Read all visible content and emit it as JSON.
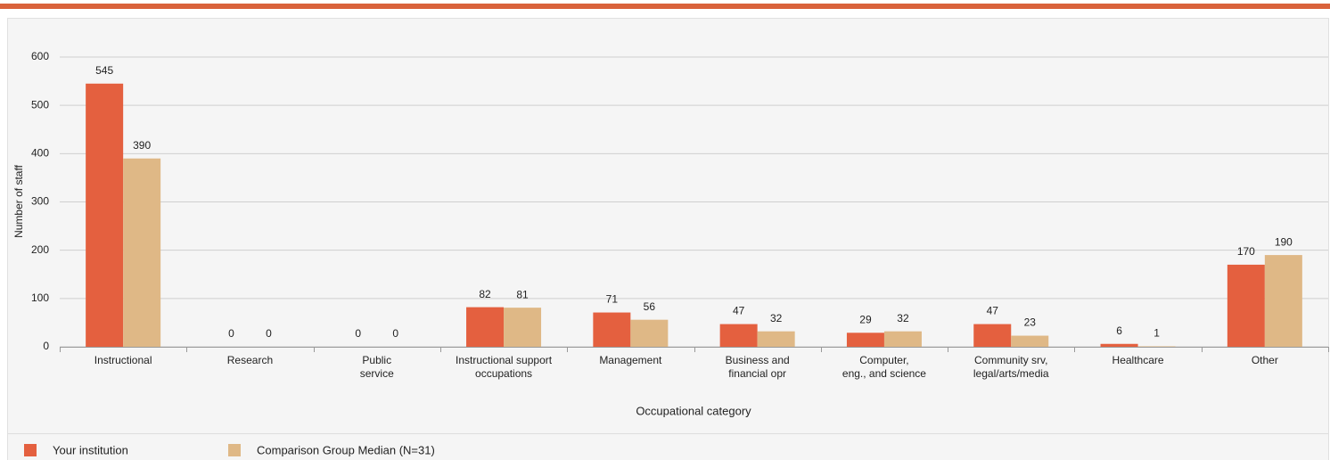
{
  "chart_data": {
    "type": "bar",
    "x_label": "Occupational category",
    "y_label": "Number of staff",
    "categories": [
      [
        "Instructional"
      ],
      [
        "Research"
      ],
      [
        "Public",
        "service"
      ],
      [
        "Instructional support",
        "occupations"
      ],
      [
        "Management"
      ],
      [
        "Business and",
        "financial opr"
      ],
      [
        "Computer,",
        "eng., and science"
      ],
      [
        "Community srv,",
        "legal/arts/media"
      ],
      [
        "Healthcare"
      ],
      [
        "Other"
      ]
    ],
    "series": [
      {
        "name": "Your institution",
        "color": "#e4603f",
        "values": [
          545,
          0,
          0,
          82,
          71,
          47,
          29,
          47,
          6,
          170
        ]
      },
      {
        "name": "Comparison Group Median (N=31)",
        "color": "#dfb886",
        "values": [
          390,
          0,
          0,
          81,
          56,
          32,
          32,
          23,
          1,
          190
        ]
      }
    ],
    "ylim": [
      0,
      600
    ],
    "yticks": [
      0,
      100,
      200,
      300,
      400,
      500,
      600
    ],
    "grid": true
  }
}
